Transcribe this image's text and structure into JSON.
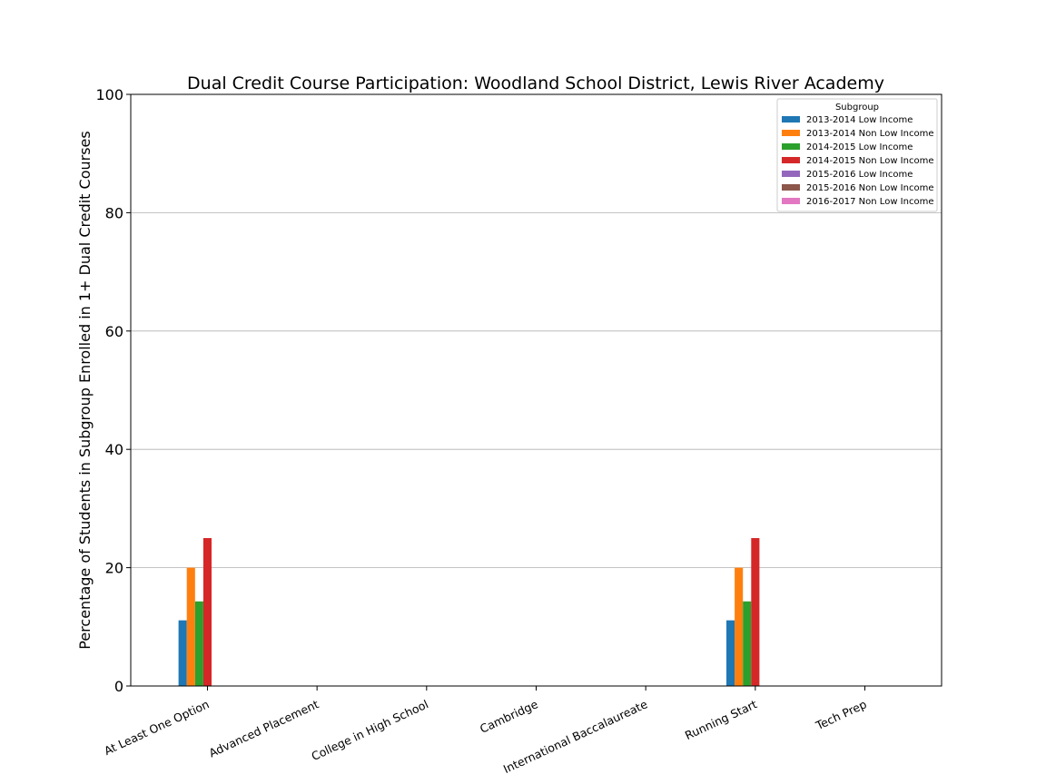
{
  "chart_data": {
    "type": "bar",
    "title": "Dual Credit Course Participation: Woodland School District, Lewis River Academy",
    "xlabel": "",
    "ylabel": "Percentage of Students in Subgroup Enrolled in 1+ Dual Credit Courses",
    "ylim": [
      0,
      100
    ],
    "yticks": [
      "0",
      "20",
      "40",
      "60",
      "80",
      "100"
    ],
    "grid": "horizontal",
    "legend": {
      "title": "Subgroup",
      "placement": "top-right"
    },
    "categories": [
      "At Least One Option",
      "Advanced Placement",
      "College in High School",
      "Cambridge",
      "International Baccalaureate",
      "Running Start",
      "Tech Prep"
    ],
    "series": [
      {
        "name": "2013-2014 Low Income",
        "color": "#1f77b4",
        "values": [
          11.1,
          0,
          0,
          0,
          0,
          11.1,
          0
        ]
      },
      {
        "name": "2013-2014 Non Low Income",
        "color": "#ff7f0e",
        "values": [
          20,
          0,
          0,
          0,
          0,
          20,
          0
        ]
      },
      {
        "name": "2014-2015 Low Income",
        "color": "#2ca02c",
        "values": [
          14.3,
          0,
          0,
          0,
          0,
          14.3,
          0
        ]
      },
      {
        "name": "2014-2015 Non Low Income",
        "color": "#d62728",
        "values": [
          25,
          0,
          0,
          0,
          0,
          25,
          0
        ]
      },
      {
        "name": "2015-2016 Low Income",
        "color": "#9467bd",
        "values": [
          0,
          0,
          0,
          0,
          0,
          0,
          0
        ]
      },
      {
        "name": "2015-2016 Non Low Income",
        "color": "#8c564b",
        "values": [
          0,
          0,
          0,
          0,
          0,
          0,
          0
        ]
      },
      {
        "name": "2016-2017 Non Low Income",
        "color": "#e377c2",
        "values": [
          0,
          0,
          0,
          0,
          0,
          0,
          0
        ]
      }
    ]
  }
}
